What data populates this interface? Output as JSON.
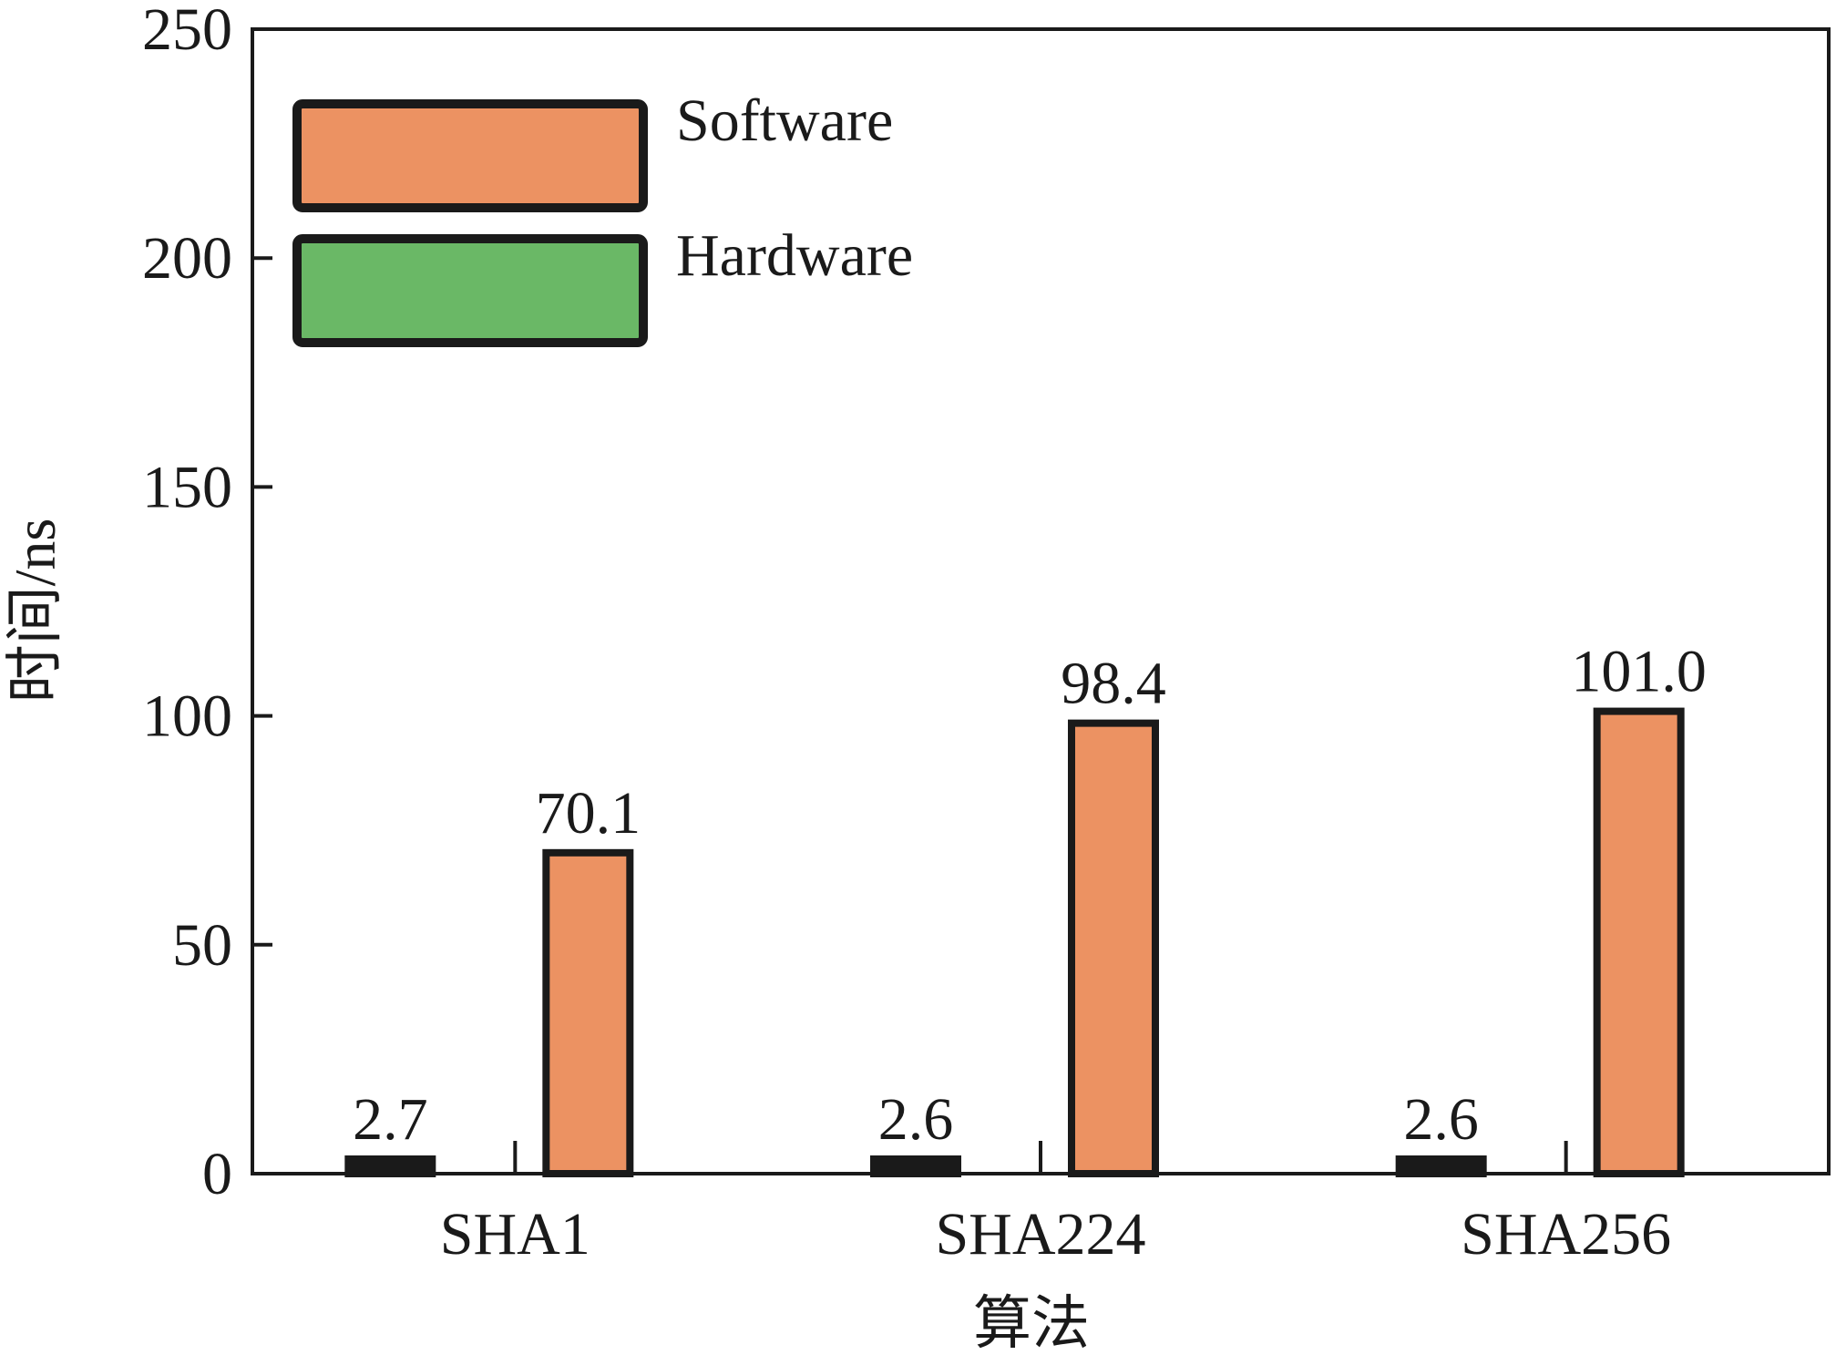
{
  "chart_data": {
    "type": "bar",
    "categories": [
      "SHA1",
      "SHA224",
      "SHA256"
    ],
    "series": [
      {
        "name": "Hardware",
        "values": [
          2.7,
          2.6,
          2.6
        ],
        "labels": [
          "2.7",
          "2.6",
          "2.6"
        ],
        "color": "#6ab866"
      },
      {
        "name": "Software",
        "values": [
          70.1,
          98.4,
          101.0
        ],
        "labels": [
          "70.1",
          "98.4",
          "101.0"
        ],
        "color": "#ec9262"
      }
    ],
    "legend_order": [
      "Software",
      "Hardware"
    ],
    "legend_position": "top-left",
    "title": "",
    "xlabel": "算法",
    "ylabel": "时间/ns",
    "ylim": [
      0,
      250
    ],
    "yticks": [
      0,
      50,
      100,
      150,
      200,
      250
    ],
    "grid": false
  }
}
